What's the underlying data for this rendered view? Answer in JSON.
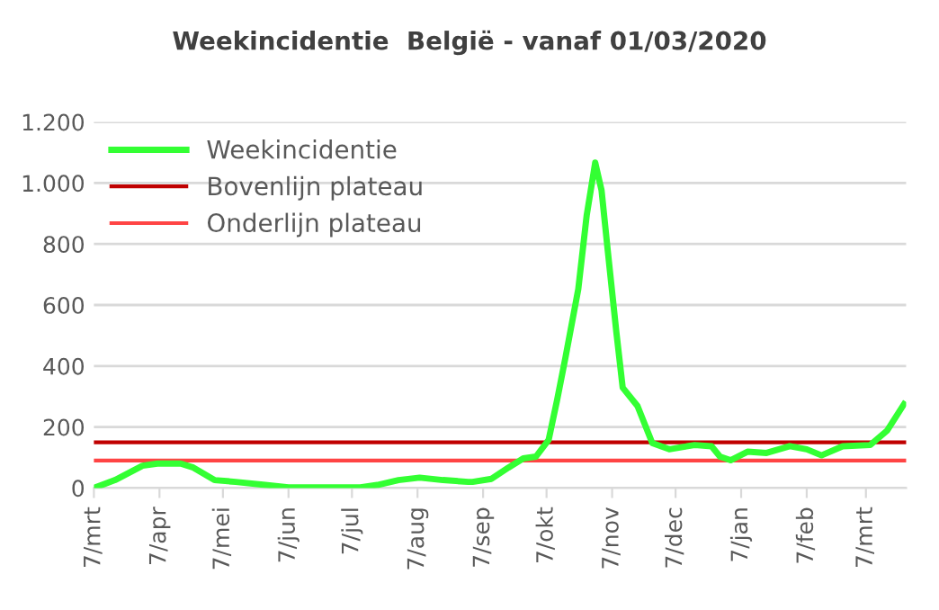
{
  "chart_data": {
    "type": "line",
    "title": "Weekincidentie  België - vanaf 01/03/2020",
    "x": [
      "2020-03-07",
      "2020-03-17",
      "2020-03-30",
      "2020-04-06",
      "2020-04-17",
      "2020-04-23",
      "2020-05-03",
      "2020-05-13",
      "2020-05-27",
      "2020-06-07",
      "2020-07-11",
      "2020-07-19",
      "2020-07-29",
      "2020-08-08",
      "2020-08-19",
      "2020-08-31",
      "2020-09-02",
      "2020-09-11",
      "2020-09-19",
      "2020-09-26",
      "2020-10-02",
      "2020-10-08",
      "2020-10-12",
      "2020-10-16",
      "2020-10-22",
      "2020-10-26",
      "2020-10-30",
      "2020-11-02",
      "2020-11-05",
      "2020-11-09",
      "2020-11-12",
      "2020-11-19",
      "2020-11-26",
      "2020-12-04",
      "2020-12-16",
      "2020-12-24",
      "2020-12-28",
      "2021-01-02",
      "2021-01-10",
      "2021-01-19",
      "2021-01-30",
      "2021-02-07",
      "2021-02-14",
      "2021-02-24",
      "2021-03-09",
      "2021-03-17",
      "2021-03-25"
    ],
    "series": [
      {
        "name": "Weekincidentie",
        "color": "#33ff33",
        "values": [
          0,
          26,
          73,
          80,
          80,
          67,
          26,
          20,
          10,
          2,
          2,
          10,
          26,
          34,
          26,
          20,
          20,
          30,
          67,
          97,
          103,
          158,
          289,
          430,
          652,
          895,
          1067,
          976,
          774,
          511,
          329,
          269,
          147,
          127,
          141,
          137,
          103,
          91,
          119,
          115,
          137,
          127,
          107,
          137,
          141,
          188,
          275
        ]
      }
    ],
    "ref_lines": [
      {
        "axis": "y",
        "value": 150,
        "label": "Bovenlijn plateau",
        "color": "#c00000"
      },
      {
        "axis": "y",
        "value": 90,
        "label": "Onderlijn plateau",
        "color": "#ff4444"
      }
    ],
    "xlim": [
      "2020-03-07",
      "2021-03-26"
    ],
    "xticks": [
      {
        "value": "2020-03-07",
        "label": "7/mrt"
      },
      {
        "value": "2020-04-07",
        "label": "7/apr"
      },
      {
        "value": "2020-05-07",
        "label": "7/mei"
      },
      {
        "value": "2020-06-07",
        "label": "7/jun"
      },
      {
        "value": "2020-07-07",
        "label": "7/jul"
      },
      {
        "value": "2020-08-07",
        "label": "7/aug"
      },
      {
        "value": "2020-09-07",
        "label": "7/sep"
      },
      {
        "value": "2020-10-07",
        "label": "7/okt"
      },
      {
        "value": "2020-11-07",
        "label": "7/nov"
      },
      {
        "value": "2020-12-07",
        "label": "7/dec"
      },
      {
        "value": "2021-01-07",
        "label": "7/jan"
      },
      {
        "value": "2021-02-07",
        "label": "7/feb"
      },
      {
        "value": "2021-03-07",
        "label": "7/mrt"
      }
    ],
    "ylim": [
      0,
      1200
    ],
    "yticks": [
      0,
      200,
      400,
      600,
      800,
      {
        "value": 1000,
        "label": "1.000"
      },
      {
        "value": 1200,
        "label": "1.200"
      }
    ],
    "grid": "y",
    "legend": "top left",
    "marker": "none",
    "line_style": "solid"
  }
}
